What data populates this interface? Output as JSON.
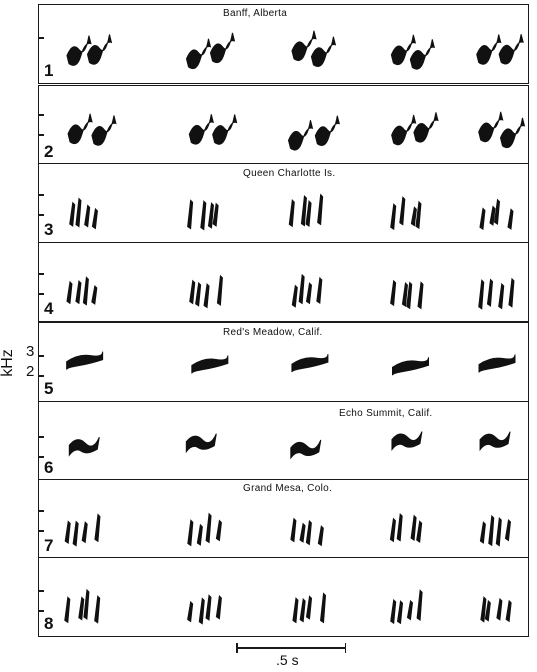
{
  "panels": [
    {
      "number": "1",
      "location": "Banff, Alberta"
    },
    {
      "number": "2",
      "location": ""
    },
    {
      "number": "3",
      "location": "Queen Charlotte Is."
    },
    {
      "number": "4",
      "location": ""
    },
    {
      "number": "5",
      "location": "Red's Meadow, Calif."
    },
    {
      "number": "6",
      "location": "Echo Summit, Calif."
    },
    {
      "number": "7",
      "location": "Grand Mesa, Colo."
    },
    {
      "number": "8",
      "location": ""
    }
  ],
  "y_axis": {
    "label": "kHz",
    "tick_3": "3",
    "tick_2": "2"
  },
  "scale_bar": {
    "label": ".5 s"
  },
  "colors": {
    "ink": "#111111",
    "background": "#ffffff"
  }
}
